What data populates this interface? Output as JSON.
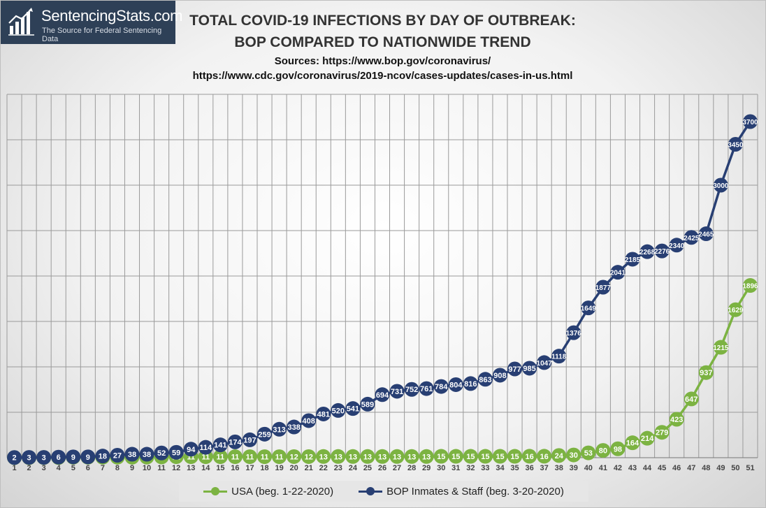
{
  "logo": {
    "name": "SentencingStats.com",
    "tagline": "The Source for Federal Sentencing Data",
    "icon": "bar-chart-icon"
  },
  "chart_data": {
    "type": "line",
    "title_line1": "TOTAL COVID-19 INFECTIONS BY DAY OF OUTBREAK:",
    "title_line2": "BOP COMPARED TO NATIONWIDE TREND",
    "subtitle_line1": "Sources: https://www.bop.gov/coronavirus/",
    "subtitle_line2": "https://www.cdc.gov/coronavirus/2019-ncov/cases-updates/cases-in-us.html",
    "x": [
      1,
      2,
      3,
      4,
      5,
      6,
      7,
      8,
      9,
      10,
      11,
      12,
      13,
      14,
      15,
      16,
      17,
      18,
      19,
      20,
      21,
      22,
      23,
      24,
      25,
      26,
      27,
      28,
      29,
      30,
      31,
      32,
      33,
      34,
      35,
      36,
      37,
      38,
      39,
      40,
      41,
      42,
      43,
      44,
      45,
      46,
      47,
      48,
      49,
      50,
      51
    ],
    "ylim": [
      0,
      4000
    ],
    "grid": true,
    "legend_position": "bottom",
    "series": [
      {
        "name": "USA (beg. 1-22-2020)",
        "color": "#7cb342",
        "values": [
          1,
          1,
          2,
          2,
          5,
          5,
          5,
          5,
          5,
          6,
          8,
          11,
          11,
          11,
          11,
          11,
          11,
          11,
          11,
          12,
          12,
          13,
          13,
          13,
          13,
          13,
          13,
          13,
          13,
          15,
          15,
          15,
          15,
          15,
          15,
          16,
          16,
          24,
          30,
          53,
          80,
          98,
          164,
          214,
          279,
          423,
          647,
          937,
          1215,
          1629,
          1896
        ]
      },
      {
        "name": "BOP Inmates & Staff (beg. 3-20-2020)",
        "color": "#283f73",
        "values": [
          2,
          3,
          3,
          6,
          9,
          9,
          18,
          27,
          38,
          38,
          52,
          59,
          94,
          114,
          141,
          174,
          197,
          259,
          313,
          338,
          408,
          481,
          520,
          541,
          589,
          694,
          731,
          752,
          761,
          784,
          804,
          816,
          863,
          908,
          977,
          985,
          1047,
          1118,
          1376,
          1649,
          1877,
          2041,
          2185,
          2268,
          2276,
          2340,
          2425,
          2465,
          3000,
          3450,
          3700
        ]
      }
    ]
  }
}
